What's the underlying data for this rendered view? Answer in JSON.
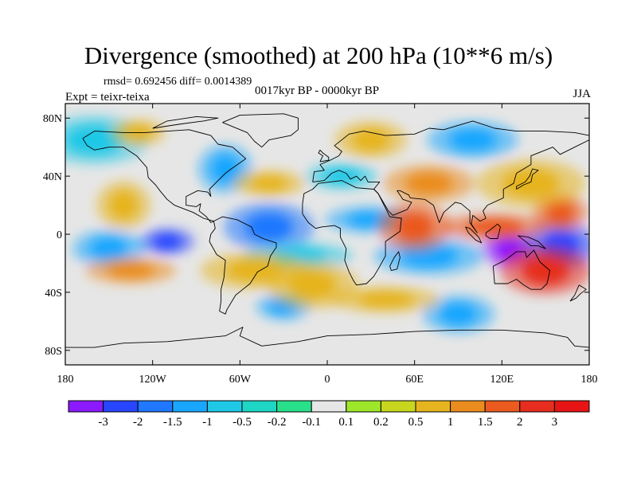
{
  "figure": {
    "title": "Divergence (smoothed) at 200 hPa (10**6 m/s)",
    "stats": "rmsd= 0.692456 diff= 0.0014389",
    "period": "0017kyr BP - 0000kyr BP",
    "experiment": "Expt = teixr-teixa",
    "season": "JJA"
  },
  "chart_data": {
    "type": "heatmap",
    "projection": "cylindrical-equidistant",
    "x_ticks": [
      "180",
      "120W",
      "60W",
      "0",
      "60E",
      "120E",
      "180"
    ],
    "y_ticks": [
      "80N",
      "40N",
      "0",
      "40S",
      "80S"
    ],
    "xlim": [
      -180,
      180
    ],
    "ylim": [
      -90,
      90
    ],
    "colorbar": {
      "colors": [
        "#8c1aff",
        "#2846ff",
        "#1f78ff",
        "#19a6ff",
        "#1fc8e6",
        "#1ed6c4",
        "#29e08a",
        "#e6e6e6",
        "#9ee62a",
        "#c8d61e",
        "#e6b41e",
        "#eb8c1e",
        "#eb5a1e",
        "#e62d1e",
        "#e61414"
      ],
      "labels": [
        "-3",
        "-2",
        "-1.5",
        "-1",
        "-0.5",
        "-0.2",
        "-0.1",
        "0.1",
        "0.2",
        "0.5",
        "1",
        "1.5",
        "2",
        "3"
      ]
    },
    "features": [
      {
        "lon": -110,
        "lat": -5,
        "level": 1
      },
      {
        "lon": -150,
        "lat": -10,
        "level": 3
      },
      {
        "lon": -40,
        "lat": 5,
        "level": 2
      },
      {
        "lon": -20,
        "lat": -15,
        "level": 4
      },
      {
        "lon": 125,
        "lat": -10,
        "level": 0
      },
      {
        "lon": 160,
        "lat": -8,
        "level": 1
      },
      {
        "lon": 30,
        "lat": 10,
        "level": 3
      },
      {
        "lon": 70,
        "lat": -15,
        "level": 3
      },
      {
        "lon": -70,
        "lat": 45,
        "level": 3
      },
      {
        "lon": 10,
        "lat": 40,
        "level": 4
      },
      {
        "lon": 100,
        "lat": 65,
        "level": 3
      },
      {
        "lon": -160,
        "lat": 65,
        "level": 4
      },
      {
        "lon": -30,
        "lat": -50,
        "level": 3
      },
      {
        "lon": 90,
        "lat": -55,
        "level": 3
      },
      {
        "lon": 150,
        "lat": -25,
        "level": 13
      },
      {
        "lon": 115,
        "lat": 5,
        "level": 12
      },
      {
        "lon": 160,
        "lat": 15,
        "level": 12
      },
      {
        "lon": 60,
        "lat": 5,
        "level": 12
      },
      {
        "lon": -135,
        "lat": -25,
        "level": 11
      },
      {
        "lon": -50,
        "lat": -25,
        "level": 10
      },
      {
        "lon": -140,
        "lat": 20,
        "level": 10
      },
      {
        "lon": -40,
        "lat": 35,
        "level": 10
      },
      {
        "lon": 70,
        "lat": 35,
        "level": 11
      },
      {
        "lon": 140,
        "lat": 35,
        "level": 10
      },
      {
        "lon": -130,
        "lat": 70,
        "level": 10
      },
      {
        "lon": 30,
        "lat": 65,
        "level": 10
      },
      {
        "lon": -10,
        "lat": -35,
        "level": 10
      },
      {
        "lon": 40,
        "lat": -45,
        "level": 10
      }
    ]
  }
}
